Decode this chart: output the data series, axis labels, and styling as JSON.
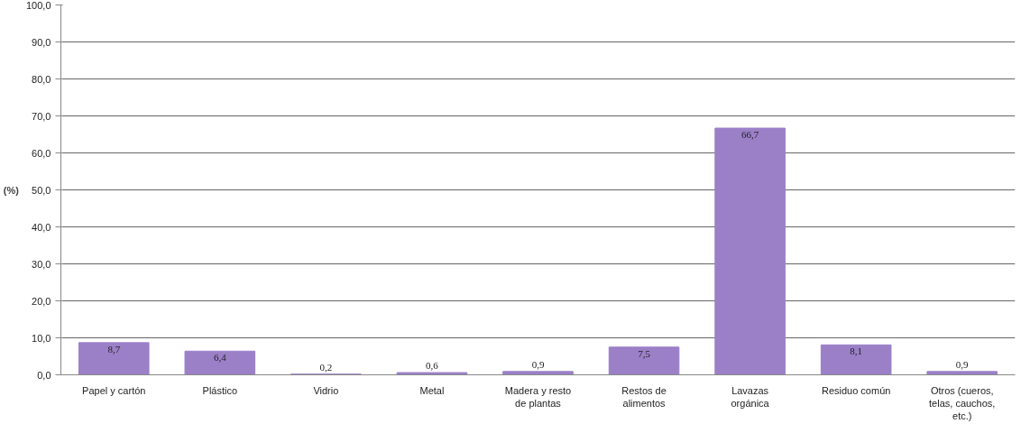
{
  "chart_data": {
    "type": "bar",
    "ylabel": "(%)",
    "categories": [
      "Papel y cartón",
      "Plástico",
      "Vidrio",
      "Metal",
      "Madera y resto de plantas",
      "Restos de alimentos",
      "Lavazas orgánica",
      "Residuo común",
      "Otros (cueros, telas, cauchos, etc.)"
    ],
    "values": [
      8.7,
      6.4,
      0.2,
      0.6,
      0.9,
      7.5,
      66.7,
      8.1,
      0.9
    ],
    "value_labels": [
      "8,7",
      "6,4",
      "0,2",
      "0,6",
      "0,9",
      "7,5",
      "66,7",
      "8,1",
      "0,9"
    ],
    "color": "#9b80c8",
    "ylim": [
      0,
      100
    ],
    "yticks": [
      {
        "value": 0,
        "label": "0,0"
      },
      {
        "value": 10,
        "label": "10,0"
      },
      {
        "value": 20,
        "label": "20,0"
      },
      {
        "value": 30,
        "label": "30,0"
      },
      {
        "value": 40,
        "label": "40,0"
      },
      {
        "value": 50,
        "label": "50,0"
      },
      {
        "value": 60,
        "label": "60,0"
      },
      {
        "value": 70,
        "label": "70,0"
      },
      {
        "value": 80,
        "label": "80,0"
      },
      {
        "value": 90,
        "label": "90,0"
      },
      {
        "value": 100,
        "label": "100,0"
      }
    ],
    "grid": "y"
  }
}
